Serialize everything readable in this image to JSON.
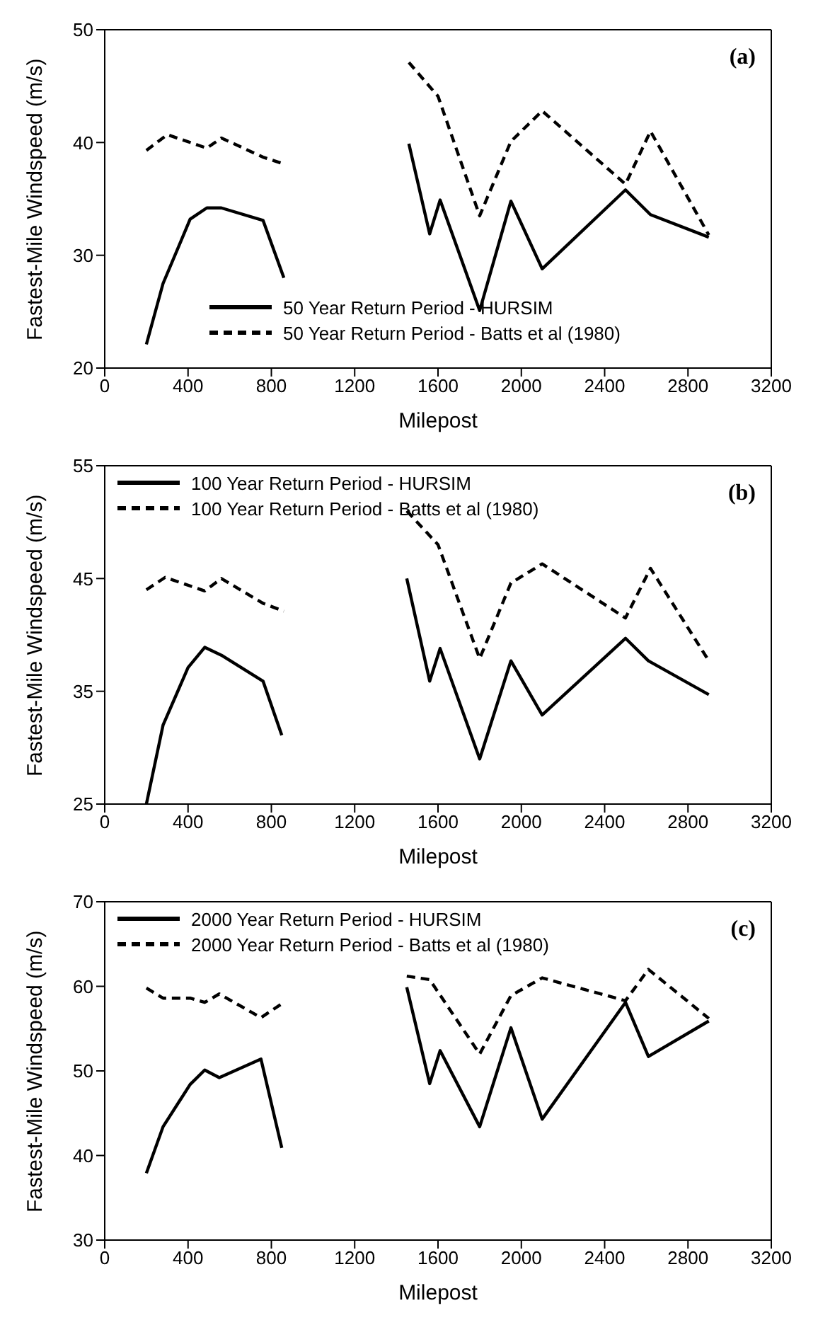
{
  "chart_data": [
    {
      "type": "line",
      "xlabel": "Milepost",
      "ylabel": "Fastest-Mile Windspeed (m/s)",
      "xlim": [
        0,
        3200
      ],
      "xticks": [
        0,
        400,
        800,
        1200,
        1600,
        2000,
        2400,
        2800,
        3200
      ],
      "ylim": [
        20,
        50
      ],
      "yticks": [
        20,
        30,
        40,
        50
      ],
      "grid": false,
      "legend": "bottom",
      "marker": "none",
      "annotations": [
        "(a)"
      ],
      "series": [
        {
          "name": "50 Year Return Period - HURSIM",
          "color": "#000000",
          "line_style": "solid",
          "x": [
            200,
            280,
            410,
            490,
            560,
            760,
            860,
            null,
            1460,
            1560,
            1610,
            1800,
            1950,
            2100,
            2500,
            2620,
            2900
          ],
          "values": [
            22.1,
            27.5,
            33.2,
            34.2,
            34.2,
            33.1,
            28.0,
            null,
            39.9,
            31.9,
            34.9,
            25.1,
            34.8,
            28.8,
            35.8,
            33.6,
            31.6
          ]
        },
        {
          "name": "50 Year Return Period - Batts et al (1980)",
          "color": "#000000",
          "line_style": "dashed",
          "x": [
            200,
            300,
            490,
            560,
            760,
            860,
            null,
            1460,
            1600,
            1800,
            1950,
            2100,
            2500,
            2620,
            2900
          ],
          "values": [
            39.3,
            40.7,
            39.5,
            40.4,
            38.7,
            38.1,
            null,
            47.1,
            44.1,
            33.5,
            40.1,
            42.8,
            36.3,
            41.0,
            31.8
          ]
        }
      ]
    },
    {
      "type": "line",
      "xlabel": "Milepost",
      "ylabel": "Fastest-Mile Windspeed (m/s)",
      "xlim": [
        0,
        3200
      ],
      "xticks": [
        0,
        400,
        800,
        1200,
        1600,
        2000,
        2400,
        2800,
        3200
      ],
      "ylim": [
        25,
        55
      ],
      "yticks": [
        25,
        35,
        45,
        55
      ],
      "grid": false,
      "legend": "top left",
      "marker": "none",
      "annotations": [
        "(b)"
      ],
      "series": [
        {
          "name": "100 Year Return Period - HURSIM",
          "color": "#000000",
          "line_style": "solid",
          "x": [
            200,
            280,
            400,
            480,
            560,
            760,
            850,
            null,
            1450,
            1560,
            1610,
            1800,
            1950,
            2100,
            2500,
            2610,
            2900
          ],
          "values": [
            25.0,
            32.0,
            37.1,
            38.9,
            38.2,
            35.9,
            31.1,
            null,
            45.0,
            35.9,
            38.8,
            29.0,
            37.7,
            32.9,
            39.7,
            37.7,
            34.7
          ]
        },
        {
          "name": "100 Year Return Period - Batts et al (1980)",
          "color": "#000000",
          "line_style": "dashed",
          "x": [
            200,
            290,
            480,
            560,
            760,
            860,
            null,
            1450,
            1600,
            1800,
            1950,
            2100,
            2500,
            2620,
            2900
          ],
          "values": [
            44.0,
            45.1,
            43.9,
            45.0,
            42.8,
            42.1,
            null,
            51.0,
            48.0,
            37.9,
            44.6,
            46.3,
            41.5,
            45.9,
            37.7
          ]
        }
      ]
    },
    {
      "type": "line",
      "xlabel": "Milepost",
      "ylabel": "Fastest-Mile Windspeed (m/s)",
      "xlim": [
        0,
        3200
      ],
      "xticks": [
        0,
        400,
        800,
        1200,
        1600,
        2000,
        2400,
        2800,
        3200
      ],
      "ylim": [
        30,
        70
      ],
      "yticks": [
        30,
        40,
        50,
        60,
        70
      ],
      "grid": false,
      "legend": "top left",
      "marker": "none",
      "annotations": [
        "(c)"
      ],
      "series": [
        {
          "name": "2000 Year Return Period - HURSIM",
          "color": "#000000",
          "line_style": "solid",
          "x": [
            200,
            280,
            410,
            480,
            550,
            750,
            850,
            null,
            1450,
            1560,
            1610,
            1800,
            1950,
            2100,
            2500,
            2610,
            2900
          ],
          "values": [
            37.9,
            43.4,
            48.4,
            50.1,
            49.2,
            51.4,
            40.9,
            null,
            59.9,
            48.5,
            52.4,
            43.4,
            55.1,
            44.3,
            58.1,
            51.7,
            55.9
          ]
        },
        {
          "name": "2000 Year Return Period - Batts et al (1980)",
          "color": "#000000",
          "line_style": "dashed",
          "x": [
            200,
            280,
            410,
            480,
            550,
            750,
            860,
            null,
            1450,
            1560,
            1800,
            1950,
            2100,
            2500,
            2610,
            2900
          ],
          "values": [
            59.8,
            58.6,
            58.6,
            58.1,
            59.1,
            56.3,
            58.1,
            null,
            61.2,
            60.8,
            52.0,
            58.9,
            61.0,
            58.3,
            62.0,
            56.2
          ]
        }
      ]
    }
  ]
}
